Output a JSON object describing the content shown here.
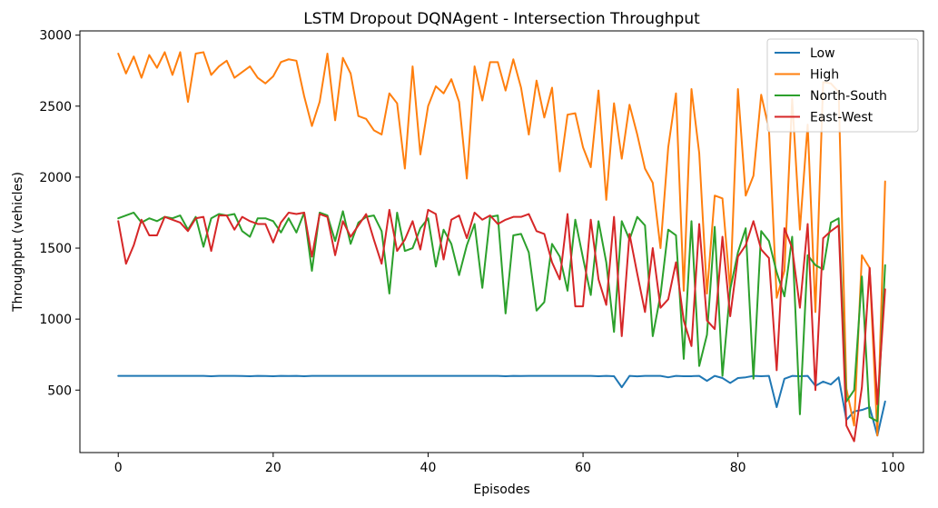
{
  "chart_data": {
    "type": "line",
    "title": "LSTM Dropout DQNAgent - Intersection Throughput",
    "xlabel": "Episodes",
    "ylabel": "Throughput (vehicles)",
    "xlim": [
      -4.95,
      103.95
    ],
    "ylim": [
      60,
      3030
    ],
    "xticks": [
      0,
      20,
      40,
      60,
      80,
      100
    ],
    "yticks": [
      500,
      1000,
      1500,
      2000,
      2500,
      3000
    ],
    "grid": false,
    "legend_position": "top-right",
    "series": [
      {
        "name": "Low",
        "color": "#1f77b4",
        "values": [
          600,
          600,
          600,
          600,
          600,
          600,
          600,
          600,
          600,
          600,
          600,
          600,
          598,
          600,
          600,
          600,
          599,
          598,
          600,
          599,
          598,
          600,
          599,
          600,
          598,
          600,
          600,
          600,
          600,
          600,
          600,
          600,
          600,
          600,
          600,
          600,
          600,
          600,
          600,
          600,
          600,
          600,
          600,
          600,
          600,
          600,
          600,
          600,
          600,
          600,
          598,
          600,
          599,
          600,
          600,
          600,
          600,
          600,
          600,
          600,
          600,
          600,
          598,
          600,
          598,
          520,
          600,
          597,
          600,
          600,
          600,
          590,
          600,
          598,
          598,
          600,
          565,
          600,
          585,
          550,
          585,
          590,
          600,
          598,
          600,
          380,
          580,
          600,
          598,
          600,
          530,
          560,
          540,
          590,
          290,
          350,
          360,
          380,
          180,
          420
        ]
      },
      {
        "name": "High",
        "color": "#ff7f0e",
        "values": [
          2870,
          2730,
          2850,
          2700,
          2860,
          2770,
          2880,
          2720,
          2880,
          2530,
          2870,
          2880,
          2720,
          2780,
          2820,
          2700,
          2740,
          2780,
          2700,
          2660,
          2710,
          2810,
          2830,
          2820,
          2570,
          2360,
          2530,
          2870,
          2400,
          2840,
          2730,
          2430,
          2410,
          2330,
          2300,
          2590,
          2520,
          2060,
          2780,
          2160,
          2500,
          2640,
          2590,
          2690,
          2530,
          1990,
          2780,
          2540,
          2810,
          2810,
          2610,
          2830,
          2630,
          2300,
          2680,
          2420,
          2630,
          2040,
          2440,
          2450,
          2210,
          2070,
          2610,
          1840,
          2520,
          2130,
          2510,
          2300,
          2060,
          1960,
          1500,
          2210,
          2590,
          1200,
          2620,
          2170,
          1180,
          1870,
          1850,
          1200,
          2620,
          1870,
          2010,
          2580,
          2340,
          1150,
          1340,
          2550,
          1630,
          2370,
          1050,
          2670,
          2660,
          2600,
          510,
          250,
          1450,
          1360,
          180,
          1970
        ]
      },
      {
        "name": "North-South",
        "color": "#2ca02c",
        "values": [
          1710,
          1730,
          1750,
          1680,
          1710,
          1690,
          1720,
          1710,
          1730,
          1630,
          1720,
          1510,
          1710,
          1740,
          1730,
          1740,
          1620,
          1580,
          1710,
          1710,
          1690,
          1610,
          1710,
          1610,
          1750,
          1340,
          1750,
          1730,
          1550,
          1760,
          1530,
          1680,
          1720,
          1730,
          1620,
          1180,
          1750,
          1480,
          1500,
          1640,
          1710,
          1370,
          1630,
          1530,
          1310,
          1520,
          1670,
          1220,
          1720,
          1730,
          1040,
          1590,
          1600,
          1470,
          1060,
          1120,
          1530,
          1440,
          1200,
          1700,
          1430,
          1170,
          1690,
          1400,
          910,
          1690,
          1560,
          1720,
          1660,
          880,
          1170,
          1630,
          1590,
          720,
          1690,
          670,
          890,
          1650,
          600,
          1210,
          1470,
          1640,
          580,
          1620,
          1550,
          1330,
          1160,
          1580,
          330,
          1450,
          1380,
          1350,
          1680,
          1710,
          420,
          500,
          1300,
          310,
          280,
          1380
        ]
      },
      {
        "name": "East-West",
        "color": "#d62728",
        "values": [
          1690,
          1390,
          1520,
          1700,
          1590,
          1590,
          1720,
          1700,
          1680,
          1620,
          1710,
          1720,
          1480,
          1730,
          1730,
          1630,
          1720,
          1690,
          1670,
          1670,
          1540,
          1680,
          1750,
          1740,
          1750,
          1440,
          1740,
          1720,
          1450,
          1690,
          1580,
          1660,
          1740,
          1560,
          1390,
          1770,
          1480,
          1560,
          1690,
          1490,
          1770,
          1740,
          1420,
          1700,
          1730,
          1570,
          1750,
          1700,
          1730,
          1670,
          1700,
          1720,
          1720,
          1740,
          1620,
          1600,
          1400,
          1280,
          1740,
          1090,
          1090,
          1700,
          1280,
          1100,
          1720,
          880,
          1600,
          1320,
          1050,
          1500,
          1080,
          1140,
          1400,
          990,
          810,
          1670,
          990,
          930,
          1580,
          1020,
          1440,
          1520,
          1690,
          1490,
          1430,
          640,
          1640,
          1500,
          1080,
          1670,
          500,
          1570,
          1620,
          1660,
          250,
          140,
          520,
          1360,
          400,
          1210
        ]
      }
    ]
  }
}
